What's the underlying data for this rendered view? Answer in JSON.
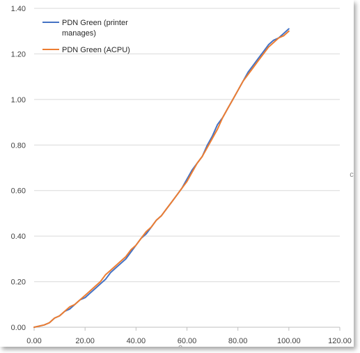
{
  "chart_data": {
    "type": "line",
    "title": "",
    "xlabel": "",
    "ylabel": "",
    "xlim": [
      0,
      120
    ],
    "ylim": [
      0,
      1.4
    ],
    "x_ticks": [
      "0.00",
      "20.00",
      "40.00",
      "60.00",
      "80.00",
      "100.00",
      "120.00"
    ],
    "y_ticks": [
      "0.00",
      "0.20",
      "0.40",
      "0.60",
      "0.80",
      "1.00",
      "1.20",
      "1.40"
    ],
    "grid": "horizontal",
    "legend_position": "top-left",
    "series": [
      {
        "name": "PDN Green (printer manages)",
        "legend_lines": [
          "PDN Green (printer",
          "manages)"
        ],
        "color": "#4472c4",
        "x": [
          0,
          2,
          4,
          6,
          8,
          10,
          12,
          14,
          16,
          18,
          20,
          22,
          24,
          26,
          28,
          30,
          32,
          34,
          36,
          38,
          40,
          42,
          44,
          46,
          48,
          50,
          52,
          54,
          56,
          58,
          60,
          62,
          64,
          66,
          68,
          70,
          72,
          74,
          76,
          78,
          80,
          82,
          84,
          86,
          88,
          90,
          92,
          94,
          96,
          98,
          100
        ],
        "y": [
          0.0,
          0.005,
          0.01,
          0.02,
          0.04,
          0.05,
          0.07,
          0.08,
          0.1,
          0.12,
          0.13,
          0.15,
          0.17,
          0.19,
          0.21,
          0.24,
          0.26,
          0.28,
          0.3,
          0.33,
          0.36,
          0.39,
          0.41,
          0.44,
          0.47,
          0.49,
          0.52,
          0.55,
          0.58,
          0.61,
          0.65,
          0.69,
          0.72,
          0.75,
          0.8,
          0.84,
          0.89,
          0.92,
          0.96,
          1.0,
          1.04,
          1.08,
          1.12,
          1.15,
          1.18,
          1.21,
          1.24,
          1.26,
          1.27,
          1.29,
          1.31
        ]
      },
      {
        "name": "PDN Green (ACPU)",
        "legend_lines": [
          "PDN Green (ACPU)"
        ],
        "color": "#ed7d31",
        "x": [
          0,
          2,
          4,
          6,
          8,
          10,
          12,
          14,
          16,
          18,
          20,
          22,
          24,
          26,
          28,
          30,
          32,
          34,
          36,
          38,
          40,
          42,
          44,
          46,
          48,
          50,
          52,
          54,
          56,
          58,
          60,
          62,
          64,
          66,
          68,
          70,
          72,
          74,
          76,
          78,
          80,
          82,
          84,
          86,
          88,
          90,
          92,
          94,
          96,
          98,
          100
        ],
        "y": [
          0.0,
          0.005,
          0.01,
          0.02,
          0.04,
          0.05,
          0.07,
          0.09,
          0.1,
          0.12,
          0.14,
          0.16,
          0.18,
          0.2,
          0.23,
          0.25,
          0.27,
          0.29,
          0.31,
          0.34,
          0.36,
          0.39,
          0.42,
          0.44,
          0.47,
          0.49,
          0.52,
          0.55,
          0.58,
          0.61,
          0.64,
          0.68,
          0.72,
          0.75,
          0.79,
          0.83,
          0.87,
          0.92,
          0.96,
          1.0,
          1.04,
          1.08,
          1.11,
          1.14,
          1.17,
          1.2,
          1.23,
          1.25,
          1.27,
          1.28,
          1.3
        ]
      }
    ]
  },
  "edge_marks": {
    "right": "c",
    "bottom": "e"
  }
}
